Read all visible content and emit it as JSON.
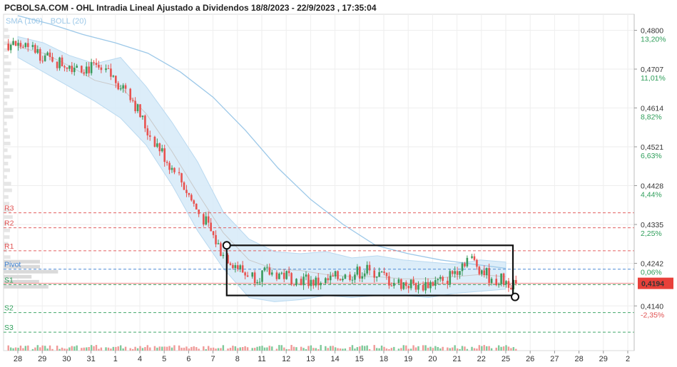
{
  "chart_data": {
    "type": "candlestick",
    "title": "PCBOLSA.COM - OHL Intradia Lineal Ajustado a Dividendos 18/8/2023 - 22/9/2023 , 17:35:04",
    "legend": [
      {
        "name": "SMA (100)",
        "color": "#9cc8e8"
      },
      {
        "name": "BOLL (20)",
        "color": "#c8c8c8"
      }
    ],
    "x_tick_labels": [
      "28",
      "29",
      "30",
      "31",
      "1",
      "4",
      "5",
      "6",
      "7",
      "8",
      "11",
      "12",
      "13",
      "14",
      "15",
      "18",
      "19",
      "20",
      "21",
      "22",
      "25",
      "26",
      "27",
      "28",
      "29",
      "2"
    ],
    "y_axis": {
      "range": [
        0.405,
        0.4835
      ],
      "ticks": [
        {
          "price": 0.48,
          "label": "0,4800",
          "pct": "13,20%"
        },
        {
          "price": 0.4707,
          "label": "0,4707",
          "pct": "11,01%"
        },
        {
          "price": 0.4614,
          "label": "0,4614",
          "pct": "8,82%"
        },
        {
          "price": 0.4521,
          "label": "0,4521",
          "pct": "6,63%"
        },
        {
          "price": 0.4428,
          "label": "0,4428",
          "pct": "4,44%"
        },
        {
          "price": 0.4335,
          "label": "0,4335",
          "pct": "2,25%"
        },
        {
          "price": 0.4242,
          "label": "0,4242",
          "pct": "0,06%"
        },
        {
          "price": 0.414,
          "label": "0,4140",
          "pct": "-2,35%"
        }
      ],
      "pct_colors": {
        "positive": "#2e9e5a",
        "negative": "#e05050"
      }
    },
    "last_price": {
      "value": 0.4194,
      "label": "0,4194",
      "color": "#e8403a"
    },
    "pivot_levels": [
      {
        "name": "R3",
        "value": 0.4363,
        "color": "#e05050"
      },
      {
        "name": "R2",
        "value": 0.4327,
        "color": "#e05050"
      },
      {
        "name": "R1",
        "value": 0.4272,
        "color": "#e05050"
      },
      {
        "name": "Pivot",
        "value": 0.4228,
        "color": "#3b7fd0"
      },
      {
        "name": "S1",
        "value": 0.4191,
        "color": "#2e9e5a"
      },
      {
        "name": "S2",
        "value": 0.4124,
        "color": "#2e9e5a"
      },
      {
        "name": "S3",
        "value": 0.4077,
        "color": "#2e9e5a"
      }
    ],
    "sessions": [
      {
        "date": "28",
        "open": 0.4768,
        "close": 0.476
      },
      {
        "date": "29",
        "open": 0.476,
        "close": 0.4725
      },
      {
        "date": "30",
        "open": 0.4725,
        "close": 0.4715
      },
      {
        "date": "31",
        "open": 0.4715,
        "close": 0.4705
      },
      {
        "date": "1",
        "open": 0.4705,
        "close": 0.466
      },
      {
        "date": "4",
        "open": 0.466,
        "close": 0.4545
      },
      {
        "date": "5",
        "open": 0.4545,
        "close": 0.446
      },
      {
        "date": "6",
        "open": 0.446,
        "close": 0.436
      },
      {
        "date": "7",
        "open": 0.436,
        "close": 0.4262
      },
      {
        "date": "8",
        "open": 0.4262,
        "close": 0.421
      },
      {
        "date": "11",
        "open": 0.421,
        "close": 0.422
      },
      {
        "date": "12",
        "open": 0.422,
        "close": 0.4205
      },
      {
        "date": "13",
        "open": 0.4205,
        "close": 0.4195
      },
      {
        "date": "14",
        "open": 0.4195,
        "close": 0.4215
      },
      {
        "date": "15",
        "open": 0.4215,
        "close": 0.4225
      },
      {
        "date": "18",
        "open": 0.4225,
        "close": 0.4195
      },
      {
        "date": "19",
        "open": 0.4195,
        "close": 0.419
      },
      {
        "date": "20",
        "open": 0.419,
        "close": 0.42
      },
      {
        "date": "21",
        "open": 0.42,
        "close": 0.4255
      },
      {
        "date": "22",
        "open": 0.4255,
        "close": 0.4205
      },
      {
        "date": "25",
        "open": 0.4205,
        "close": 0.4194
      }
    ],
    "sma_100": [
      0.4835,
      0.4815,
      0.479,
      0.477,
      0.4745,
      0.47,
      0.464,
      0.456,
      0.447,
      0.4395,
      0.4335,
      0.4285,
      0.4265,
      0.425,
      0.424,
      0.423
    ],
    "boll_20": {
      "upper": [
        0.4785,
        0.477,
        0.474,
        0.472,
        0.4735,
        0.4665,
        0.458,
        0.4485,
        0.4365,
        0.43,
        0.427,
        0.4265,
        0.427,
        0.4255,
        0.426,
        0.425,
        0.4245,
        0.424,
        0.425,
        0.4245
      ],
      "middle": [
        0.476,
        0.4745,
        0.4715,
        0.468,
        0.4665,
        0.46,
        0.451,
        0.441,
        0.4315,
        0.425,
        0.4228,
        0.4225,
        0.4215,
        0.421,
        0.421,
        0.4205,
        0.4205,
        0.421,
        0.4215,
        0.421
      ],
      "lower": [
        0.4735,
        0.47,
        0.4665,
        0.463,
        0.459,
        0.4525,
        0.443,
        0.432,
        0.423,
        0.416,
        0.415,
        0.4155,
        0.4165,
        0.416,
        0.4165,
        0.4165,
        0.416,
        0.417,
        0.4175,
        0.418
      ]
    },
    "annotation_box": {
      "from": "8",
      "to": "25",
      "top": 0.4285,
      "bottom": 0.4165,
      "label": ""
    },
    "grid": true,
    "colors": {
      "up": "#3a9a5b",
      "down": "#e8524f",
      "sma": "#9cc8e8",
      "boll_fill": "#d6eaf8",
      "boll_line": "#c9c9c9"
    }
  }
}
